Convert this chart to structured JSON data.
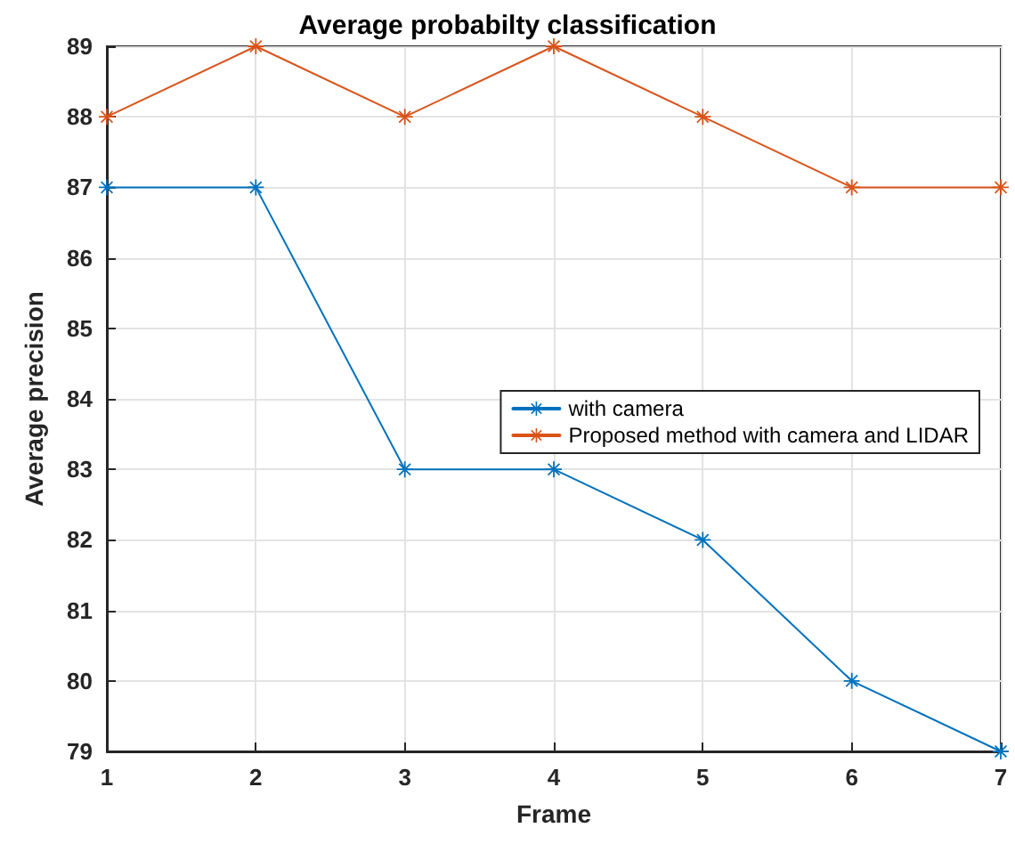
{
  "chart_data": {
    "type": "line",
    "title": "Average probabilty classification",
    "xlabel": "Frame",
    "ylabel": "Average precision",
    "x": [
      1,
      2,
      3,
      4,
      5,
      6,
      7
    ],
    "series": [
      {
        "name": "with camera",
        "color": "#0072bd",
        "values": [
          87,
          87,
          83,
          83,
          82,
          80,
          79
        ]
      },
      {
        "name": "Proposed method with camera and LIDAR",
        "color": "#d95319",
        "values": [
          88,
          89,
          88,
          89,
          88,
          87,
          87
        ]
      }
    ],
    "xlim": [
      1,
      7
    ],
    "xticks": [
      1,
      2,
      3,
      4,
      5,
      6,
      7
    ],
    "ylim": [
      79,
      89
    ],
    "yticks": [
      79,
      80,
      81,
      82,
      83,
      84,
      85,
      86,
      87,
      88,
      89
    ],
    "grid": true,
    "legend": "right",
    "marker": "star",
    "line_style": "solid"
  }
}
